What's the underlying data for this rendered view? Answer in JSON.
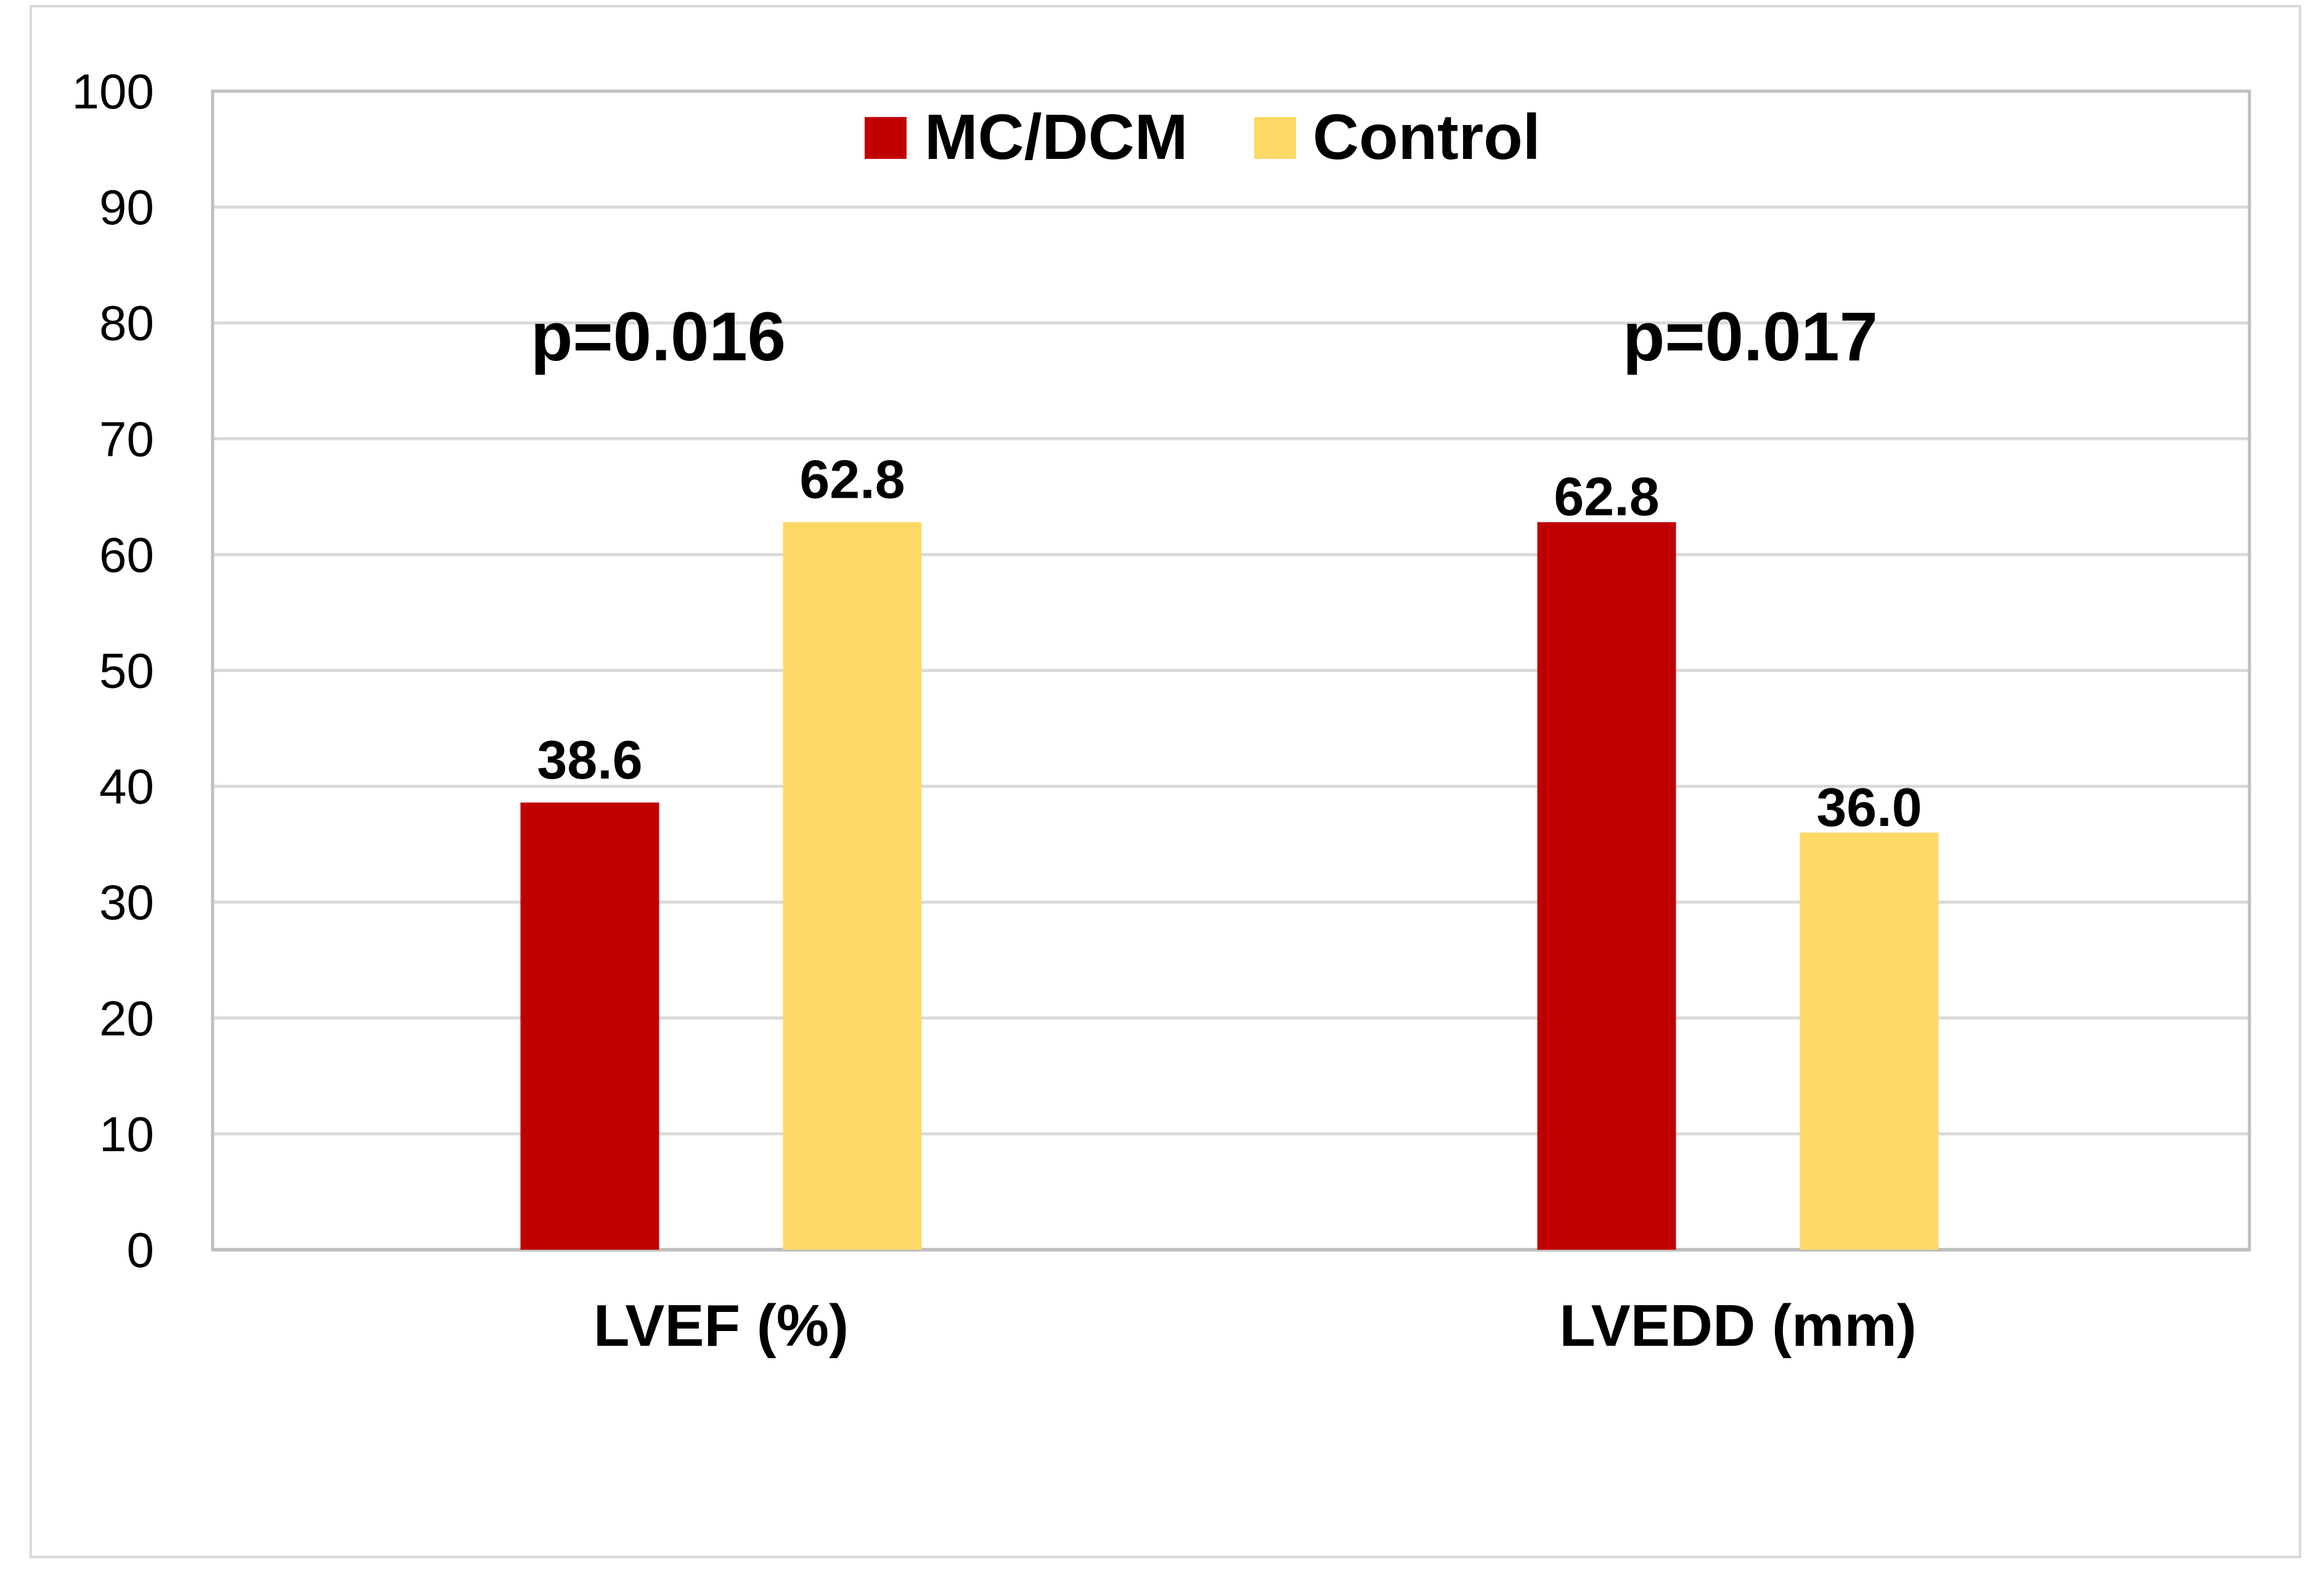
{
  "chart_data": {
    "type": "bar",
    "title": "",
    "xlabel": "",
    "ylabel": "",
    "ylim": [
      0,
      100
    ],
    "yticks": [
      0,
      10,
      20,
      30,
      40,
      50,
      60,
      70,
      80,
      90,
      100
    ],
    "grid": true,
    "legend_position": "top-center",
    "categories": [
      "LVEF (%)",
      "LVEDD (mm)"
    ],
    "series": [
      {
        "name": "MC/DCM",
        "color": "#c00000",
        "values": [
          38.6,
          62.8
        ],
        "labels": [
          "38.6",
          "62.8"
        ]
      },
      {
        "name": "Control",
        "color": "#ffd966",
        "values": [
          62.8,
          36.0
        ],
        "labels": [
          "62.8",
          "36.0"
        ]
      }
    ],
    "annotations": [
      "p=0.016",
      "p=0.017"
    ]
  }
}
